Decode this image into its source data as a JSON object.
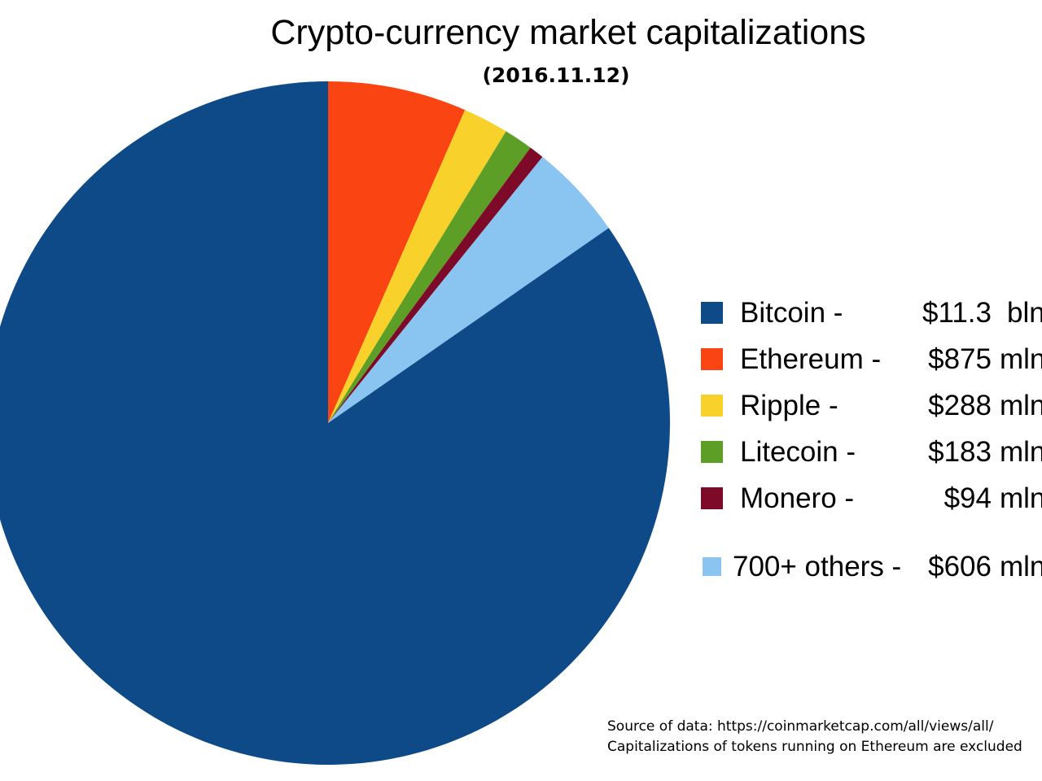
{
  "page": {
    "background": "#ffffff"
  },
  "chart_data": {
    "type": "pie",
    "title": "Crypto-currency market capitalizations",
    "subtitle": "(2016.11.12)",
    "categories": [
      "Bitcoin",
      "Ethereum",
      "Ripple",
      "Litecoin",
      "Monero",
      "700+ others"
    ],
    "values_mln": [
      11300,
      875,
      288,
      183,
      94,
      606
    ],
    "colors": [
      "#0d4a87",
      "#fa4512",
      "#f9d12b",
      "#5d9e27",
      "#7c0a28",
      "#8ac4f0"
    ],
    "slice_order_clockwise_from_top": [
      "Ethereum",
      "Ripple",
      "Litecoin",
      "Monero",
      "700+ others",
      "Bitcoin"
    ],
    "legend_position": "right",
    "legend": [
      {
        "label": "Bitcoin -",
        "value": "$11.3",
        "unit": "bln"
      },
      {
        "label": "Ethereum -",
        "value": "$875",
        "unit": "mln"
      },
      {
        "label": "Ripple -",
        "value": "$288",
        "unit": "mln"
      },
      {
        "label": "Litecoin -",
        "value": "$183",
        "unit": "mln"
      },
      {
        "label": "Monero -",
        "value": "$94",
        "unit": "mln"
      },
      {
        "label": "700+ others -",
        "value": "$606",
        "unit": "mln"
      }
    ],
    "source_line1": "Source of data: https://coinmarketcap.com/all/views/all/",
    "source_line2": "Capitalizations of tokens running on Ethereum are excluded"
  }
}
